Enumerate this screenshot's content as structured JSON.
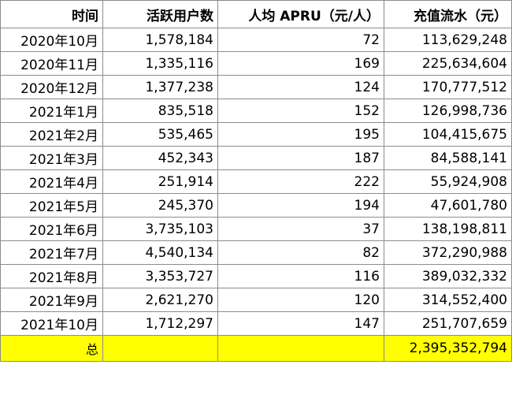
{
  "table": {
    "headers": [
      "时间",
      "活跃用户数",
      "人均 APRU（元/人）",
      "充值流水（元）"
    ],
    "rows": [
      [
        "2020年10月",
        "1,578,184",
        "72",
        "113,629,248"
      ],
      [
        "2020年11月",
        "1,335,116",
        "169",
        "225,634,604"
      ],
      [
        "2020年12月",
        "1,377,238",
        "124",
        "170,777,512"
      ],
      [
        "2021年1月",
        "835,518",
        "152",
        "126,998,736"
      ],
      [
        "2021年2月",
        "535,465",
        "195",
        "104,415,675"
      ],
      [
        "2021年3月",
        "452,343",
        "187",
        "84,588,141"
      ],
      [
        "2021年4月",
        "251,914",
        "222",
        "55,924,908"
      ],
      [
        "2021年5月",
        "245,370",
        "194",
        "47,601,780"
      ],
      [
        "2021年6月",
        "3,735,103",
        "37",
        "138,198,811"
      ],
      [
        "2021年7月",
        "4,540,134",
        "82",
        "372,290,988"
      ],
      [
        "2021年8月",
        "3,353,727",
        "116",
        "389,032,332"
      ],
      [
        "2021年9月",
        "2,621,270",
        "120",
        "314,552,400"
      ],
      [
        "2021年10月",
        "1,712,297",
        "147",
        "251,707,659"
      ]
    ],
    "total": {
      "label": "总",
      "users": "",
      "arpu": "",
      "revenue": "2,395,352,794"
    },
    "highlight_color": "#ffff00"
  }
}
